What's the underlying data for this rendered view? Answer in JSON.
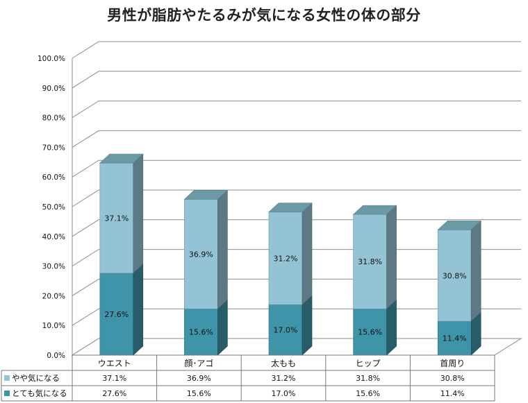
{
  "chart_data": {
    "type": "bar",
    "stacked": true,
    "three_d": true,
    "title": "男性が脂肪やたるみが気になる女性の体の部分",
    "categories": [
      "ウエスト",
      "顔･アゴ",
      "太もも",
      "ヒップ",
      "首周り"
    ],
    "series": [
      {
        "name": "とても気になる",
        "values": [
          27.6,
          15.6,
          17.0,
          15.6,
          11.4
        ],
        "labels": [
          "27.6%",
          "15.6%",
          "17.0%",
          "15.6%",
          "11.4%"
        ],
        "color": "#3f94aa"
      },
      {
        "name": "やや気になる",
        "values": [
          37.1,
          36.9,
          31.2,
          31.8,
          30.8
        ],
        "labels": [
          "37.1%",
          "36.9%",
          "31.2%",
          "31.8%",
          "30.8%"
        ],
        "color": "#94c3d5"
      }
    ],
    "ylim": [
      0,
      100
    ],
    "yticks": [
      "0.0%",
      "10.0%",
      "20.0%",
      "30.0%",
      "40.0%",
      "50.0%",
      "60.0%",
      "70.0%",
      "80.0%",
      "90.0%",
      "100.0%"
    ],
    "grid": true,
    "data_table": true,
    "table_rows": [
      {
        "name": "やや気になる",
        "cells": [
          "37.1%",
          "36.9%",
          "31.2%",
          "31.8%",
          "30.8%"
        ]
      },
      {
        "name": "とても気になる",
        "cells": [
          "27.6%",
          "15.6%",
          "17.0%",
          "15.6%",
          "11.4%"
        ]
      }
    ]
  }
}
